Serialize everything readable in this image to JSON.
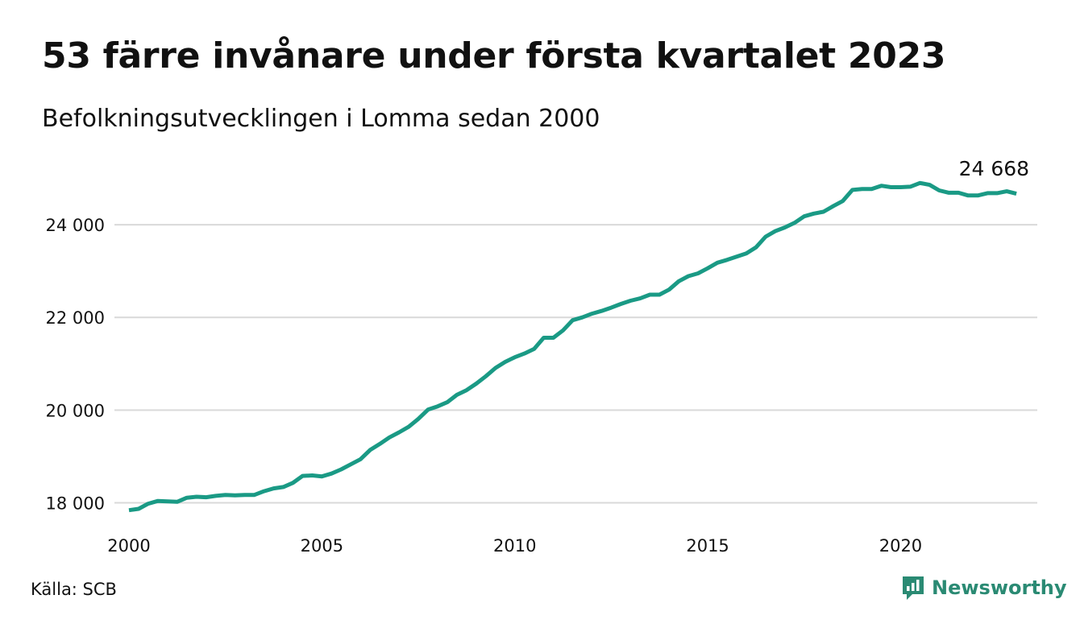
{
  "header": {
    "title": "53 färre invånare under första kvartalet 2023",
    "subtitle": "Befolkningsutvecklingen i Lomma sedan 2000"
  },
  "footer": {
    "source": "Källa: SCB",
    "brand": "Newsworthy"
  },
  "colors": {
    "line": "#1a9a85",
    "grid": "#d9d9d9",
    "text": "#111111",
    "brand": "#2a8a73"
  },
  "chart_data": {
    "type": "line",
    "title": "53 färre invånare under första kvartalet 2023",
    "subtitle": "Befolkningsutvecklingen i Lomma sedan 2000",
    "x_unit": "quarter",
    "x_start": "2000 Q1",
    "x_end": "2023 Q1",
    "xlim": [
      2000,
      2023.5
    ],
    "ylim": [
      17800,
      25200
    ],
    "x_ticks": [
      2000,
      2005,
      2010,
      2015,
      2020
    ],
    "x_tick_labels": [
      "2000",
      "2005",
      "2010",
      "2015",
      "2020"
    ],
    "y_ticks": [
      18000,
      20000,
      22000,
      24000
    ],
    "y_tick_labels": [
      "18 000",
      "20 000",
      "22 000",
      "24 000"
    ],
    "grid": "horizontal",
    "end_label": "24 668",
    "series": [
      {
        "values": [
          17840,
          17870,
          17980,
          18040,
          18030,
          18020,
          18110,
          18130,
          18120,
          18150,
          18170,
          18160,
          18170,
          18170,
          18250,
          18310,
          18340,
          18430,
          18580,
          18590,
          18570,
          18630,
          18720,
          18830,
          18940,
          19140,
          19270,
          19410,
          19520,
          19640,
          19810,
          20010,
          20080,
          20170,
          20330,
          20430,
          20570,
          20730,
          20910,
          21040,
          21140,
          21220,
          21320,
          21560,
          21560,
          21720,
          21940,
          22000,
          22080,
          22140,
          22210,
          22290,
          22360,
          22410,
          22490,
          22490,
          22600,
          22780,
          22890,
          22950,
          23060,
          23180,
          23240,
          23310,
          23380,
          23510,
          23740,
          23860,
          23940,
          24040,
          24180,
          24240,
          24280,
          24400,
          24510,
          24750,
          24770,
          24770,
          24840,
          24810,
          24810,
          24820,
          24900,
          24860,
          24740,
          24690,
          24690,
          24630,
          24630,
          24680,
          24680,
          24720,
          24668
        ]
      }
    ]
  }
}
